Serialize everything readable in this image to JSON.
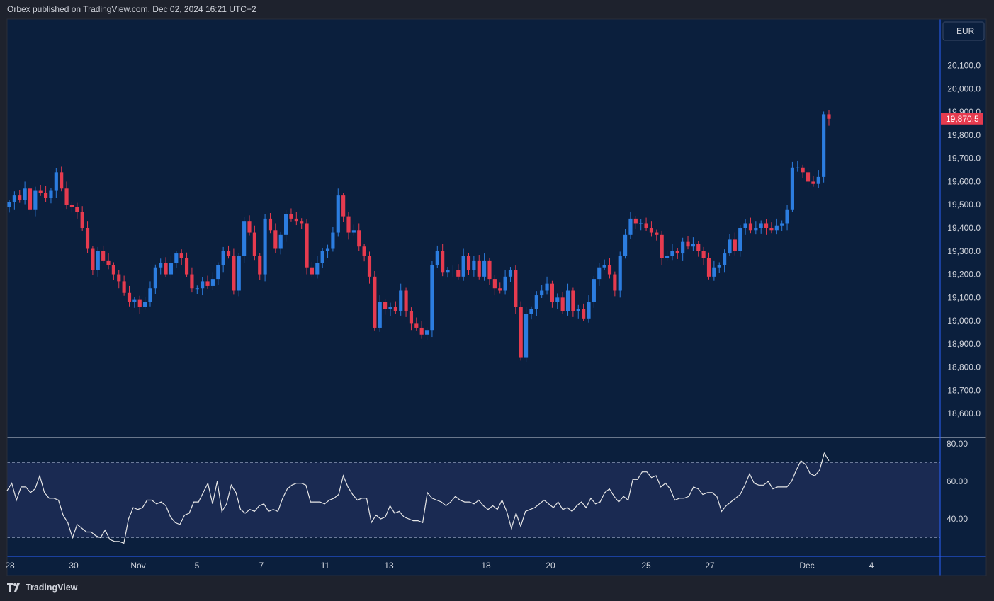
{
  "header": {
    "published": "Orbex published on TradingView.com, Dec 02, 2024 16:21 UTC+2"
  },
  "footer": {
    "brand": "TradingView"
  },
  "currency": "EUR",
  "last_price_label": "19,870.5",
  "colors": {
    "background": "#0b1f3d",
    "up": "#2c7de0",
    "down": "#e63b4f",
    "rsi_line": "#e6e6e6",
    "rsi_band": "#1a2a52",
    "frame": "#2962ff",
    "page": "#1e222d"
  },
  "chart_data": [
    {
      "type": "candlestick",
      "title": "",
      "ylim": [
        18500,
        20300
      ],
      "yticks": [
        "20,100.0",
        "20,000.0",
        "19,900.0",
        "19,800.0",
        "19,700.0",
        "19,600.0",
        "19,500.0",
        "19,400.0",
        "19,300.0",
        "19,200.0",
        "19,100.0",
        "19,000.0",
        "18,900.0",
        "18,800.0",
        "18,700.0",
        "18,600.0"
      ],
      "xticks": [
        "28",
        "30",
        "Nov",
        "5",
        "7",
        "11",
        "13",
        "18",
        "20",
        "25",
        "27",
        "Dec",
        "4"
      ],
      "close_series": [
        19510,
        19540,
        19520,
        19570,
        19480,
        19560,
        19550,
        19530,
        19560,
        19640,
        19570,
        19500,
        19490,
        19470,
        19400,
        19310,
        19220,
        19300,
        19260,
        19240,
        19200,
        19170,
        19120,
        19080,
        19090,
        19060,
        19080,
        19140,
        19230,
        19250,
        19200,
        19250,
        19290,
        19270,
        19200,
        19140,
        19140,
        19170,
        19150,
        19180,
        19240,
        19300,
        19280,
        19130,
        19280,
        19430,
        19380,
        19280,
        19200,
        19440,
        19390,
        19310,
        19370,
        19460,
        19440,
        19430,
        19420,
        19230,
        19200,
        19250,
        19300,
        19310,
        19380,
        19540,
        19450,
        19380,
        19390,
        19320,
        19280,
        19190,
        18970,
        19080,
        19050,
        19060,
        19040,
        19130,
        19040,
        18990,
        18970,
        18940,
        18960,
        19240,
        19300,
        19210,
        19220,
        19220,
        19190,
        19280,
        19220,
        19260,
        19190,
        19260,
        19180,
        19140,
        19130,
        19190,
        19220,
        19060,
        18840,
        19030,
        19050,
        19110,
        19130,
        19160,
        19080,
        19100,
        19040,
        19130,
        19040,
        19050,
        19010,
        19080,
        19180,
        19230,
        19240,
        19200,
        19130,
        19280,
        19370,
        19440,
        19420,
        19420,
        19400,
        19380,
        19370,
        19270,
        19280,
        19300,
        19290,
        19340,
        19320,
        19330,
        19300,
        19270,
        19190,
        19230,
        19240,
        19290,
        19350,
        19300,
        19400,
        19420,
        19390,
        19400,
        19420,
        19400,
        19390,
        19410,
        19420,
        19480,
        19660,
        19660,
        19640,
        19600,
        19590,
        19620,
        19890,
        19870.5
      ]
    },
    {
      "type": "line",
      "name": "",
      "ylim": [
        20,
        83
      ],
      "yticks": [
        "80.00",
        "60.00",
        "40.00"
      ],
      "levels": [
        30,
        50,
        70
      ],
      "values": [
        55,
        59,
        50,
        57,
        57,
        54,
        56,
        63,
        54,
        51,
        51,
        50,
        42,
        38,
        30,
        37,
        35,
        33,
        33,
        31,
        30,
        34,
        29,
        28,
        28,
        27,
        40,
        46,
        45,
        46,
        50,
        50,
        48,
        49,
        47,
        41,
        38,
        37,
        42,
        43,
        49,
        49,
        54,
        59,
        48,
        60,
        44,
        48,
        58,
        54,
        45,
        43,
        45,
        44,
        47,
        48,
        44,
        45,
        44,
        51,
        56,
        58,
        59,
        59,
        58,
        49,
        49,
        49,
        48,
        50,
        51,
        53,
        63,
        57,
        53,
        50,
        51,
        51,
        38,
        42,
        40,
        41,
        47,
        43,
        44,
        41,
        40,
        39,
        39,
        38,
        54,
        51,
        50,
        49,
        47,
        49,
        52,
        50,
        49,
        49,
        48,
        50,
        47,
        45,
        47,
        45,
        50,
        44,
        35,
        43,
        36,
        44,
        45,
        46,
        48,
        50,
        48,
        46,
        49,
        45,
        46,
        44,
        47,
        49,
        46,
        51,
        48,
        49,
        54,
        56,
        52,
        49,
        52,
        50,
        61,
        61,
        65,
        65,
        62,
        63,
        57,
        59,
        56,
        50,
        51,
        51,
        52,
        57,
        56,
        53,
        54,
        54,
        52,
        44,
        47,
        49,
        51,
        53,
        58,
        64,
        59,
        58,
        58,
        60,
        56,
        57,
        57,
        57,
        60,
        66,
        71,
        69,
        64,
        63,
        66,
        75,
        71
      ]
    }
  ]
}
